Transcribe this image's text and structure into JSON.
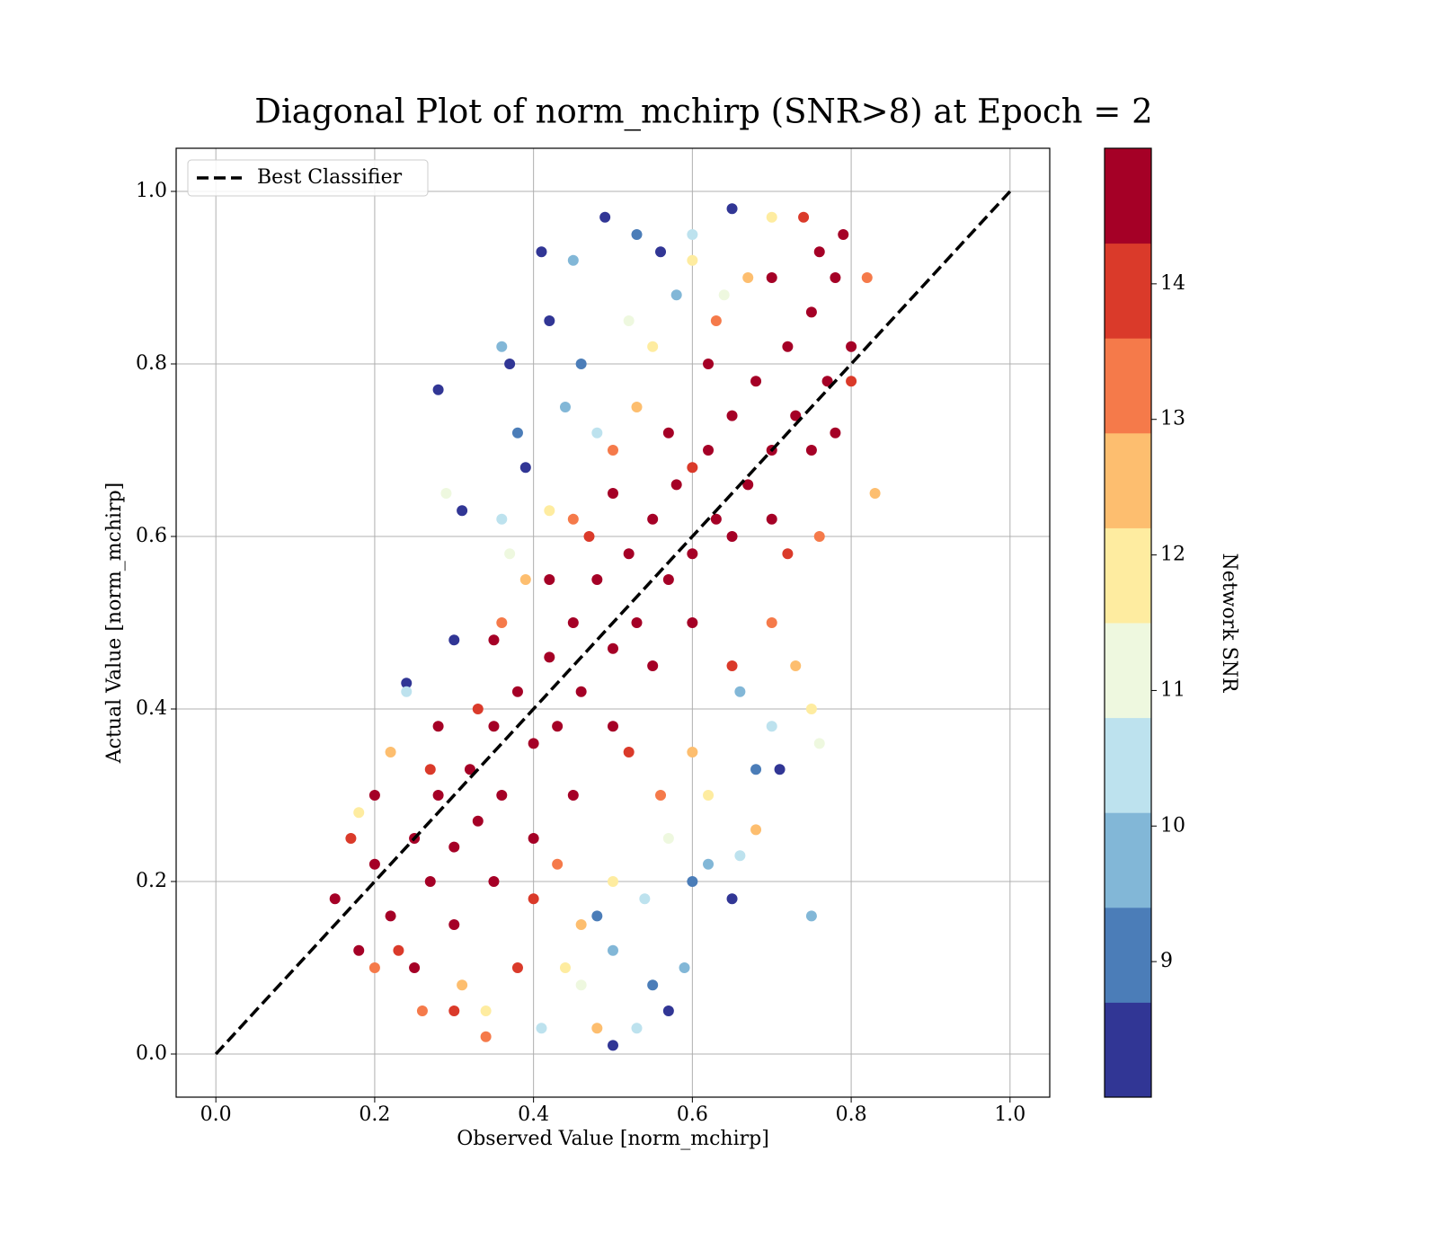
{
  "chart_data": {
    "type": "scatter",
    "title": "Diagonal Plot of norm_mchirp (SNR>8) at Epoch = 2",
    "xlabel": "Observed Value [norm_mchirp]",
    "ylabel": "Actual Value [norm_mchirp]",
    "xlim": [
      -0.05,
      1.05
    ],
    "ylim": [
      -0.05,
      1.05
    ],
    "xticks": [
      {
        "value": 0,
        "label": "0.0"
      },
      0.2,
      0.4,
      0.6,
      0.8,
      {
        "value": 1,
        "label": "1.0"
      }
    ],
    "yticks": [
      {
        "value": 0,
        "label": "0.0"
      },
      0.2,
      0.4,
      0.6,
      0.8,
      {
        "value": 1,
        "label": "1.0"
      }
    ],
    "grid": true,
    "legend": "upper left",
    "x": [
      0.28,
      0.31,
      0.37,
      0.41,
      0.49,
      0.56,
      0.65,
      0.42,
      0.39,
      0.57,
      0.65,
      0.5,
      0.71,
      0.24,
      0.3,
      0.38,
      0.46,
      0.53,
      0.55,
      0.6,
      0.68,
      0.48,
      0.36,
      0.44,
      0.5,
      0.58,
      0.59,
      0.66,
      0.75,
      0.45,
      0.62,
      0.24,
      0.36,
      0.41,
      0.48,
      0.54,
      0.6,
      0.7,
      0.53,
      0.66,
      0.29,
      0.37,
      0.46,
      0.57,
      0.64,
      0.76,
      0.52,
      0.18,
      0.34,
      0.42,
      0.5,
      0.55,
      0.62,
      0.7,
      0.75,
      0.44,
      0.6,
      0.22,
      0.31,
      0.39,
      0.46,
      0.53,
      0.6,
      0.67,
      0.73,
      0.68,
      0.83,
      0.48,
      0.2,
      0.26,
      0.36,
      0.43,
      0.5,
      0.56,
      0.63,
      0.7,
      0.76,
      0.82,
      0.34,
      0.45,
      0.17,
      0.23,
      0.3,
      0.33,
      0.4,
      0.47,
      0.52,
      0.6,
      0.65,
      0.72,
      0.8,
      0.74,
      0.38,
      0.27,
      0.15,
      0.18,
      0.2,
      0.22,
      0.25,
      0.27,
      0.28,
      0.3,
      0.32,
      0.33,
      0.35,
      0.36,
      0.38,
      0.4,
      0.42,
      0.43,
      0.45,
      0.46,
      0.48,
      0.5,
      0.52,
      0.53,
      0.55,
      0.57,
      0.58,
      0.6,
      0.62,
      0.63,
      0.65,
      0.67,
      0.68,
      0.7,
      0.72,
      0.73,
      0.75,
      0.77,
      0.78,
      0.8,
      0.79,
      0.76,
      0.25,
      0.3,
      0.35,
      0.4,
      0.45,
      0.5,
      0.55,
      0.6,
      0.65,
      0.7,
      0.75,
      0.78,
      0.2,
      0.28,
      0.35,
      0.42,
      0.5,
      0.57,
      0.62,
      0.7
    ],
    "values": [
      0.77,
      0.63,
      0.8,
      0.93,
      0.97,
      0.93,
      0.98,
      0.85,
      0.68,
      0.05,
      0.18,
      0.01,
      0.33,
      0.43,
      0.48,
      0.72,
      0.8,
      0.95,
      0.08,
      0.2,
      0.33,
      0.16,
      0.82,
      0.75,
      0.12,
      0.88,
      0.1,
      0.42,
      0.16,
      0.92,
      0.22,
      0.42,
      0.62,
      0.03,
      0.72,
      0.18,
      0.95,
      0.38,
      0.03,
      0.23,
      0.65,
      0.58,
      0.08,
      0.25,
      0.88,
      0.36,
      0.85,
      0.28,
      0.05,
      0.63,
      0.2,
      0.82,
      0.3,
      0.97,
      0.4,
      0.1,
      0.92,
      0.35,
      0.08,
      0.55,
      0.15,
      0.75,
      0.35,
      0.9,
      0.45,
      0.26,
      0.65,
      0.03,
      0.1,
      0.05,
      0.5,
      0.22,
      0.7,
      0.3,
      0.85,
      0.5,
      0.6,
      0.9,
      0.02,
      0.62,
      0.25,
      0.12,
      0.05,
      0.4,
      0.18,
      0.6,
      0.35,
      0.68,
      0.45,
      0.58,
      0.78,
      0.97,
      0.1,
      0.33,
      0.18,
      0.12,
      0.22,
      0.16,
      0.25,
      0.2,
      0.3,
      0.24,
      0.33,
      0.27,
      0.38,
      0.3,
      0.42,
      0.36,
      0.46,
      0.38,
      0.5,
      0.42,
      0.55,
      0.47,
      0.58,
      0.5,
      0.62,
      0.55,
      0.66,
      0.58,
      0.7,
      0.62,
      0.74,
      0.66,
      0.78,
      0.7,
      0.82,
      0.74,
      0.86,
      0.78,
      0.9,
      0.82,
      0.95,
      0.93,
      0.1,
      0.15,
      0.2,
      0.25,
      0.3,
      0.38,
      0.45,
      0.5,
      0.6,
      0.62,
      0.7,
      0.72,
      0.3,
      0.38,
      0.48,
      0.55,
      0.65,
      0.72,
      0.8,
      0.9
    ],
    "snr": [
      8.2,
      8.2,
      8.2,
      8.2,
      8.2,
      8.2,
      8.2,
      8.2,
      8.2,
      8.2,
      8.2,
      8.2,
      8.2,
      8.2,
      8.2,
      8.9,
      8.9,
      8.9,
      8.9,
      8.9,
      8.9,
      8.9,
      9.6,
      9.6,
      9.6,
      9.6,
      9.6,
      9.6,
      9.6,
      9.6,
      9.6,
      10.3,
      10.3,
      10.3,
      10.3,
      10.3,
      10.3,
      10.3,
      10.3,
      10.3,
      11.0,
      11.0,
      11.0,
      11.0,
      11.0,
      11.0,
      11.0,
      11.7,
      11.7,
      11.7,
      11.7,
      11.7,
      11.7,
      11.7,
      11.7,
      11.7,
      11.7,
      12.4,
      12.4,
      12.4,
      12.4,
      12.4,
      12.4,
      12.4,
      12.4,
      12.4,
      12.4,
      12.4,
      13.1,
      13.1,
      13.1,
      13.1,
      13.1,
      13.1,
      13.1,
      13.1,
      13.1,
      13.1,
      13.1,
      13.1,
      13.8,
      13.8,
      13.8,
      13.8,
      13.8,
      13.8,
      13.8,
      13.8,
      13.8,
      13.8,
      13.8,
      13.8,
      13.8,
      13.8,
      14.6,
      14.6,
      14.6,
      14.6,
      14.6,
      14.6,
      14.6,
      14.6,
      14.6,
      14.6,
      14.6,
      14.6,
      14.6,
      14.6,
      14.6,
      14.6,
      14.6,
      14.6,
      14.6,
      14.6,
      14.6,
      14.6,
      14.6,
      14.6,
      14.6,
      14.6,
      14.6,
      14.6,
      14.6,
      14.6,
      14.6,
      14.6,
      14.6,
      14.6,
      14.6,
      14.6,
      14.6,
      14.6,
      14.6,
      14.6,
      14.6,
      14.6,
      14.6,
      14.6,
      14.6,
      14.6,
      14.6,
      14.6,
      14.6,
      14.6,
      14.6,
      14.6,
      14.6,
      14.6,
      14.6,
      14.6,
      14.6,
      14.6,
      14.6,
      14.6
    ],
    "reference_line": {
      "name": "Best Classifier",
      "x": [
        0,
        1
      ],
      "values": [
        0,
        1
      ],
      "color": "#000000",
      "dashed": true
    },
    "colorbar": {
      "label": "Network SNR",
      "lim": [
        8,
        15
      ],
      "ticks": [
        9,
        10,
        11,
        12,
        13,
        14
      ],
      "colors": [
        "#313695",
        "#4b7db8",
        "#82b7d7",
        "#bde2ee",
        "#eef8df",
        "#feeca0",
        "#fdbe6f",
        "#f57a4a",
        "#da3a2a",
        "#a50026"
      ]
    }
  }
}
